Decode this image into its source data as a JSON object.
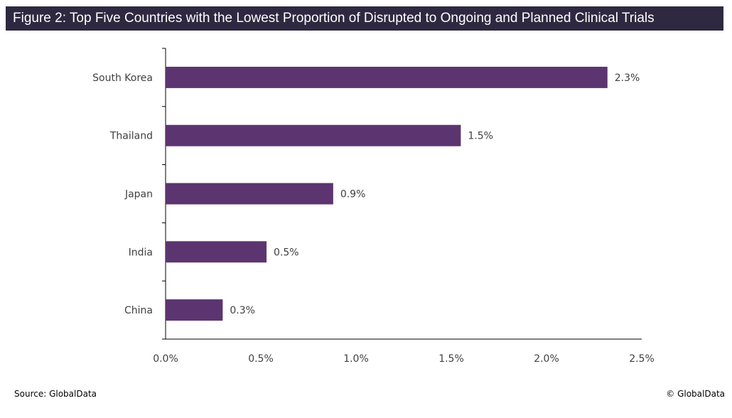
{
  "chart_data": {
    "type": "bar",
    "orientation": "horizontal",
    "title": "Figure 2: Top Five Countries with the Lowest Proportion of Disrupted to Ongoing and Planned Clinical Trials",
    "categories": [
      "South Korea",
      "Thailand",
      "Japan",
      "India",
      "China"
    ],
    "values": [
      2.32,
      1.55,
      0.88,
      0.53,
      0.3
    ],
    "data_labels": [
      "2.3%",
      "1.5%",
      "0.9%",
      "0.5%",
      "0.3%"
    ],
    "xlim": [
      0,
      2.5
    ],
    "xticks": [
      0,
      0.5,
      1.0,
      1.5,
      2.0,
      2.5
    ],
    "xtick_labels": [
      "0.0%",
      "0.5%",
      "1.0%",
      "1.5%",
      "2.0%",
      "2.5%"
    ],
    "xlabel": "",
    "ylabel": "",
    "grid": false,
    "bar_color": "#5c3570"
  },
  "footer": {
    "source": "Source: GlobalData",
    "copyright": "© GlobalData"
  }
}
